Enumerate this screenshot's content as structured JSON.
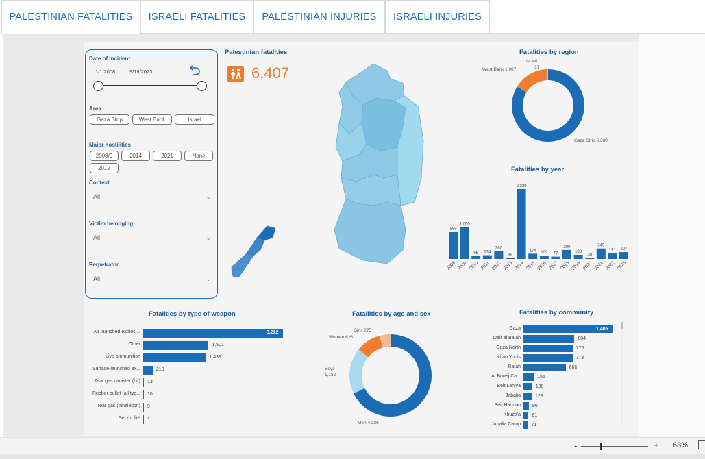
{
  "tabs": [
    "PALESTINIAN FATALITIES",
    "ISRAELI FATALITIES",
    "PALESTINIAN INJURIES",
    "ISRAELI INJURIES"
  ],
  "filters": {
    "date_label": "Date of incident",
    "date_start": "1/1/2008",
    "date_end": "9/19/2023",
    "area_label": "Area",
    "area_options": [
      "Gaza Strip",
      "West Bank",
      "Israel"
    ],
    "hostilities_label": "Major hostilities",
    "hostilities_options": [
      "2008/9",
      "2014",
      "2021",
      "None",
      "2012"
    ],
    "context_label": "Context",
    "context_value": "All",
    "victim_label": "Victim belonging",
    "victim_value": "All",
    "perpetrator_label": "Perpetrator",
    "perpetrator_value": "All"
  },
  "kpi": {
    "title": "Palestinian fatalities",
    "value": "6,407"
  },
  "colors": {
    "blue": "#1c6bb5",
    "orange": "#f07c2f",
    "light_blue": "#a9d8ee",
    "peach": "#f5b89a"
  },
  "status": {
    "zoom_minus": "-",
    "zoom_plus": "+",
    "zoom_level": "63%"
  },
  "chart_data": [
    {
      "type": "pie",
      "title": "Fatalities by region",
      "slices": [
        {
          "label": "Gaza Strip",
          "value": 5360,
          "display": "5,360"
        },
        {
          "label": "West Bank",
          "value": 1007,
          "display": "1,007"
        },
        {
          "label": "Israel",
          "value": 37,
          "display": "37"
        }
      ]
    },
    {
      "type": "bar",
      "title": "Fatalities by year",
      "categories": [
        "2008",
        "2009",
        "2010",
        "2011",
        "2012",
        "2013",
        "2014",
        "2015",
        "2016",
        "2017",
        "2018",
        "2019",
        "2020",
        "2021",
        "2022",
        "2023"
      ],
      "values": [
        899,
        1066,
        95,
        124,
        260,
        39,
        2329,
        174,
        109,
        77,
        300,
        138,
        30,
        349,
        191,
        227
      ],
      "labels": [
        "899",
        "1,066",
        "95",
        "124",
        "260",
        "39",
        "2,329",
        "174",
        "109",
        "77",
        "300",
        "138",
        "30",
        "349",
        "191",
        "227"
      ]
    },
    {
      "type": "bar",
      "title": "Fatalities by type of weapon",
      "categories": [
        "Air launched explosi...",
        "Other",
        "Live ammunition",
        "Surface-launched ex...",
        "Tear gas canister (hit)",
        "Rubber bullet (all typ...",
        "Tear gas (inhalation)",
        "Set on fire"
      ],
      "values": [
        3212,
        1501,
        1439,
        219,
        13,
        10,
        9,
        4
      ],
      "labels": [
        "3,212",
        "1,501",
        "1,439",
        "219",
        "13",
        "10",
        "9",
        "4"
      ]
    },
    {
      "type": "pie",
      "title": "Fatallities by age and sex",
      "slices": [
        {
          "label": "Men",
          "value": 4326,
          "display": "4,326"
        },
        {
          "label": "Boys",
          "value": 1162,
          "display": "1,162"
        },
        {
          "label": "Women",
          "value": 626,
          "display": "626"
        },
        {
          "label": "Girls",
          "value": 275,
          "display": "275"
        }
      ]
    },
    {
      "type": "bar",
      "title": "Fatalities by community",
      "categories": [
        "Gaza",
        "Deir al Balah",
        "Gaza North",
        "Khan Yunis",
        "Rafah",
        "Al Bureij Ca...",
        "Beit Lahiya",
        "Jabalia",
        "Beit Hanoun",
        "Khuza'a",
        "Jabalia Camp"
      ],
      "values": [
        1405,
        804,
        776,
        773,
        666,
        165,
        138,
        129,
        86,
        81,
        71
      ],
      "labels": [
        "1,405",
        "804",
        "776",
        "773",
        "666",
        "165",
        "138",
        "129",
        "86",
        "81",
        "71"
      ]
    }
  ]
}
